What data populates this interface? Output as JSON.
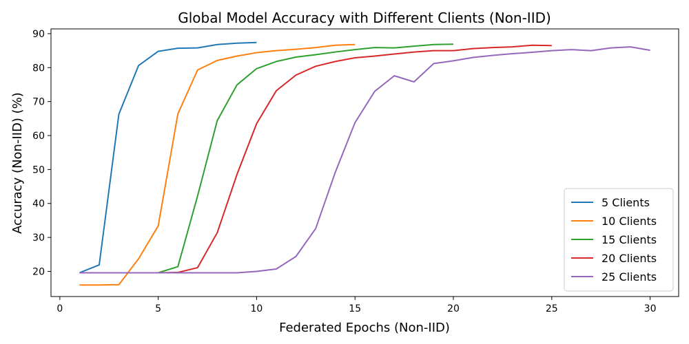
{
  "chart_data": {
    "type": "line",
    "title": "Global Model Accuracy with Different Clients (Non-IID)",
    "xlabel": "Federated Epochs (Non-IID)",
    "ylabel": "Accuracy (Non-IID) (%)",
    "xlim": [
      -0.45,
      31.45
    ],
    "ylim": [
      12.6,
      91.4
    ],
    "xticks": [
      0,
      5,
      10,
      15,
      20,
      25,
      30
    ],
    "yticks": [
      20,
      30,
      40,
      50,
      60,
      70,
      80,
      90
    ],
    "grid": false,
    "legend_position": "bottom-right",
    "series": [
      {
        "name": "5 Clients",
        "color": "#1f77b4",
        "x": [
          1,
          2,
          3,
          4,
          5,
          6,
          7,
          8,
          9,
          10
        ],
        "y": [
          19.6,
          21.9,
          66.3,
          80.6,
          84.8,
          85.7,
          85.8,
          86.8,
          87.2,
          87.4
        ]
      },
      {
        "name": "10 Clients",
        "color": "#ff7f0e",
        "x": [
          1,
          2,
          3,
          4,
          5,
          6,
          7,
          8,
          9,
          10,
          11,
          12,
          13,
          14,
          15
        ],
        "y": [
          16.0,
          16.0,
          16.1,
          23.7,
          33.4,
          66.4,
          79.3,
          82.1,
          83.4,
          84.4,
          85.0,
          85.4,
          85.9,
          86.6,
          86.8
        ]
      },
      {
        "name": "15 Clients",
        "color": "#2ca02c",
        "x": [
          1,
          2,
          3,
          4,
          5,
          6,
          7,
          8,
          9,
          10,
          11,
          12,
          13,
          14,
          15,
          16,
          17,
          18,
          19,
          20
        ],
        "y": [
          19.6,
          19.6,
          19.6,
          19.6,
          19.6,
          21.4,
          42.2,
          64.4,
          74.9,
          79.7,
          81.8,
          83.1,
          83.8,
          84.6,
          85.3,
          85.9,
          85.8,
          86.3,
          86.8,
          86.9
        ]
      },
      {
        "name": "20 Clients",
        "color": "#d62728",
        "x": [
          1,
          2,
          3,
          4,
          5,
          6,
          7,
          8,
          9,
          10,
          11,
          12,
          13,
          14,
          15,
          16,
          17,
          18,
          19,
          20,
          21,
          22,
          23,
          24,
          25
        ],
        "y": [
          19.6,
          19.6,
          19.6,
          19.6,
          19.6,
          19.7,
          21.1,
          31.4,
          48.5,
          63.5,
          73.2,
          77.8,
          80.4,
          81.8,
          82.9,
          83.4,
          84.0,
          84.6,
          85.0,
          85.0,
          85.6,
          85.9,
          86.1,
          86.6,
          86.5
        ]
      },
      {
        "name": "25 Clients",
        "color": "#9467bd",
        "x": [
          1,
          2,
          3,
          4,
          5,
          6,
          7,
          8,
          9,
          10,
          11,
          12,
          13,
          14,
          15,
          16,
          17,
          18,
          19,
          20,
          21,
          22,
          23,
          24,
          25,
          26,
          27,
          28,
          29,
          30
        ],
        "y": [
          19.6,
          19.6,
          19.6,
          19.6,
          19.6,
          19.6,
          19.6,
          19.6,
          19.6,
          20.0,
          20.7,
          24.4,
          32.6,
          49.2,
          63.8,
          73.0,
          77.6,
          75.8,
          81.2,
          82.0,
          83.0,
          83.6,
          84.1,
          84.5,
          85.0,
          85.3,
          85.0,
          85.8,
          86.1,
          85.1
        ]
      }
    ]
  }
}
